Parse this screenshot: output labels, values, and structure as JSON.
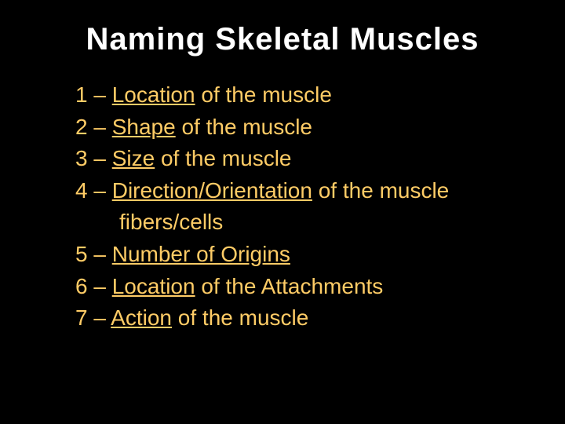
{
  "slide": {
    "background_color": "#000000",
    "title": {
      "text": "Naming Skeletal Muscles",
      "color": "#ffffff",
      "fontsize": 40,
      "font_weight": "bold",
      "align": "center"
    },
    "body": {
      "color": "#ffcc66",
      "fontsize": 28,
      "line_height": 1.45,
      "items": [
        {
          "num": "1",
          "keyword": "Location",
          "rest": " of the muscle"
        },
        {
          "num": "2",
          "keyword": "Shape",
          "rest": " of the muscle"
        },
        {
          "num": "3",
          "keyword": "Size",
          "rest": " of the muscle"
        },
        {
          "num": "4",
          "keyword": "Direction/Orientation",
          "rest": " of the muscle"
        },
        {
          "cont": "fibers/cells"
        },
        {
          "num": "5",
          "keyword": "Number of Origins",
          "rest": ""
        },
        {
          "num": "6",
          "keyword": "Location",
          "rest": " of the Attachments"
        },
        {
          "num": "7",
          "keyword": "Action",
          "rest": " of the muscle"
        }
      ]
    },
    "dash": " – "
  }
}
